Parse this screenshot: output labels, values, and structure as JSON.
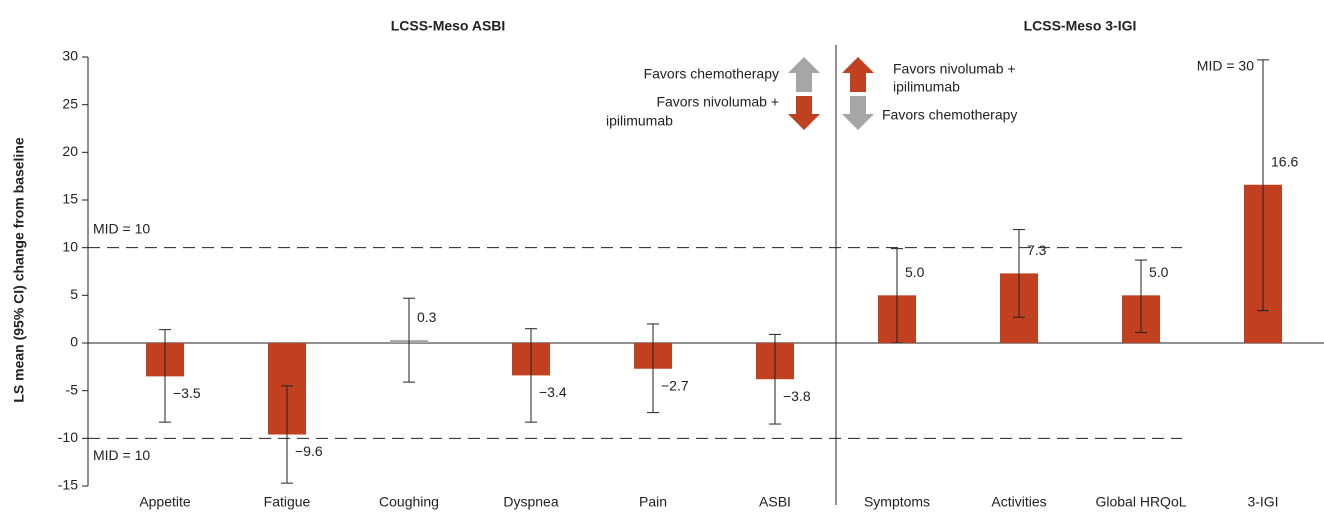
{
  "chart_data": {
    "type": "bar",
    "group_titles": [
      "LCSS-Meso ASBI",
      "LCSS-Meso 3-IGI"
    ],
    "y_label": "LS mean (95% CI) change from baseline",
    "categories": [
      "Appetite",
      "Fatigue",
      "Coughing",
      "Dyspnea",
      "Pain",
      "ASBI",
      "Symptoms",
      "Activities",
      "Global HRQoL",
      "3-IGI"
    ],
    "values": [
      -3.5,
      -9.6,
      0.3,
      -3.4,
      -2.7,
      -3.8,
      5.0,
      7.3,
      5.0,
      16.6
    ],
    "value_labels": [
      "−3.5",
      "−9.6",
      "0.3",
      "−3.4",
      "−2.7",
      "−3.8",
      "5.0",
      "7.3",
      "5.0",
      "16.6"
    ],
    "ci_lower": [
      -8.3,
      -14.7,
      -4.1,
      -8.3,
      -7.3,
      -8.5,
      0.0,
      2.7,
      1.1,
      3.4
    ],
    "ci_upper": [
      1.4,
      -4.5,
      4.7,
      1.5,
      2.0,
      0.9,
      9.9,
      11.9,
      8.7,
      29.7
    ],
    "colors": [
      "#c0401f",
      "#c0401f",
      "#a6a6a6",
      "#c0401f",
      "#c0401f",
      "#c0401f",
      "#c0401f",
      "#c0401f",
      "#c0401f",
      "#c0401f"
    ],
    "ylim": [
      -15,
      30
    ],
    "yticks": [
      -15,
      -10,
      -5,
      0,
      5,
      10,
      15,
      20,
      25,
      30
    ],
    "reference_lines": [
      {
        "value": 10,
        "label": "MID = 10"
      },
      {
        "value": -10,
        "label": "MID = 10"
      }
    ],
    "mid_3igi": {
      "value": 30,
      "label": "MID = 30"
    },
    "legend_left": {
      "up": "Favors chemotherapy",
      "down": [
        "Favors nivolumab +",
        "ipilimumab"
      ]
    },
    "legend_right": {
      "up": [
        "Favors nivolumab +",
        "ipilimumab"
      ],
      "down": "Favors chemotherapy"
    }
  }
}
